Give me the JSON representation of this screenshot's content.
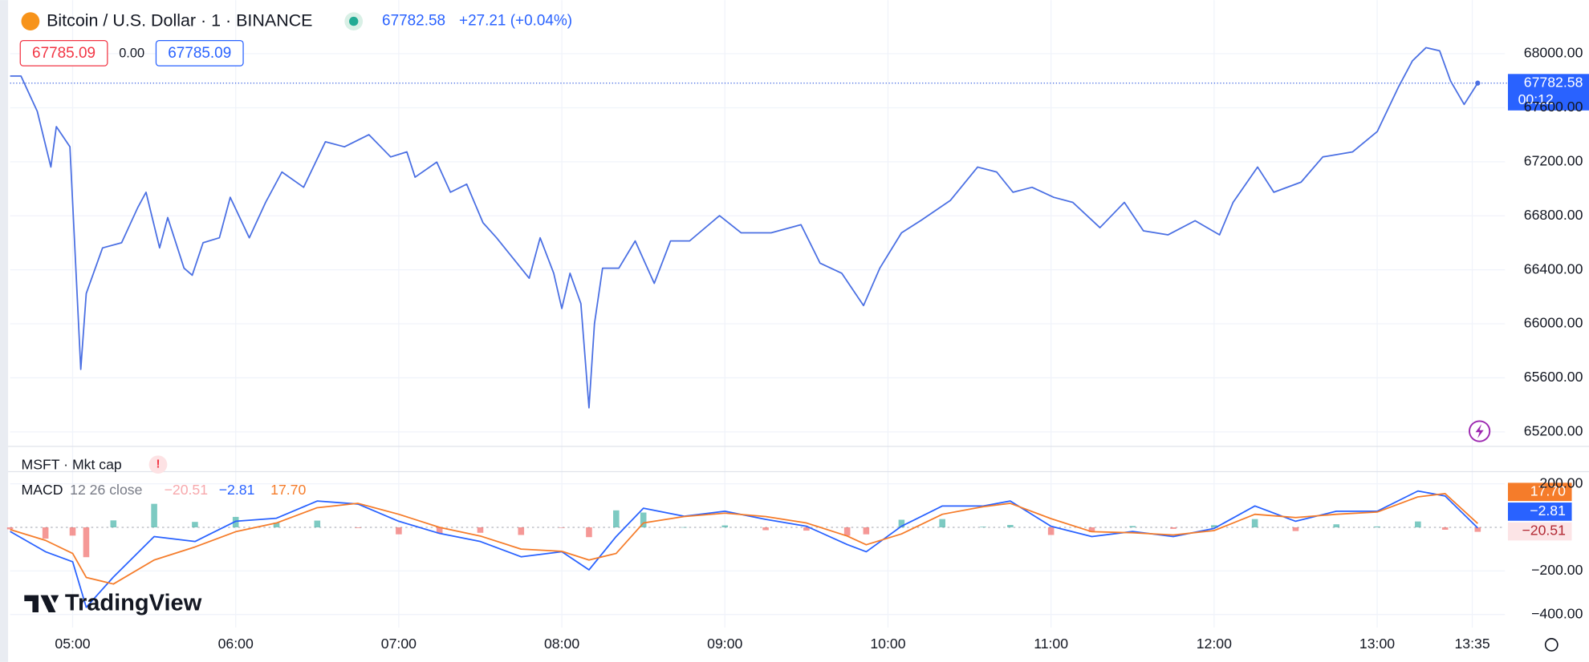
{
  "header": {
    "symbol": "Bitcoin / U.S. Dollar · 1 · BINANCE",
    "change": "+27.21 (+0.04%)",
    "bid": "67785.09",
    "spread": "0.00",
    "ask": "67785.09",
    "pane_title": "MSFT · Mkt cap",
    "logo": "TradingView"
  },
  "chart_data": [
    {
      "type": "line",
      "countdown": "00:12",
      "xlim": [
        "04:37",
        "13:47"
      ],
      "ylim": [
        65100,
        68360
      ],
      "xticks": [
        "05:00",
        "06:00",
        "07:00",
        "08:00",
        "09:00",
        "10:00",
        "11:00",
        "12:00",
        "13:00",
        "13:35"
      ],
      "yticks": [
        {
          "value": 65200,
          "label": "65200.00"
        },
        {
          "value": 65600,
          "label": "65600.00"
        },
        {
          "value": 66000,
          "label": "66000.00"
        },
        {
          "value": 66400,
          "label": "66400.00"
        },
        {
          "value": 66800,
          "label": "66800.00"
        },
        {
          "value": 67200,
          "label": "67200.00"
        },
        {
          "value": 67600,
          "label": "67600.00"
        },
        {
          "value": 68000,
          "label": "68000.00"
        }
      ],
      "grid": true,
      "series": [
        {
          "color": "#4a6fe3",
          "x": [
            "04:37",
            "04:41",
            "04:47",
            "04:52",
            "04:54",
            "04:59",
            "05:03",
            "05:05",
            "05:11",
            "05:18",
            "05:24",
            "05:27",
            "05:32",
            "05:35",
            "05:41",
            "05:44",
            "05:48",
            "05:54",
            "05:58",
            "06:05",
            "06:11",
            "06:17",
            "06:25",
            "06:33",
            "06:40",
            "06:49",
            "06:57",
            "07:03",
            "07:06",
            "07:14",
            "07:19",
            "07:25",
            "07:31",
            "07:36",
            "07:42",
            "07:48",
            "07:52",
            "07:57",
            "08:00",
            "08:03",
            "08:07",
            "08:10",
            "08:12",
            "08:15",
            "08:21",
            "08:27",
            "08:34",
            "08:40",
            "08:47",
            "08:58",
            "09:06",
            "09:17",
            "09:28",
            "09:35",
            "09:43",
            "09:51",
            "09:57",
            "10:05",
            "10:12",
            "10:23",
            "10:33",
            "10:40",
            "10:46",
            "10:53",
            "11:01",
            "11:08",
            "11:18",
            "11:27",
            "11:34",
            "11:43",
            "11:53",
            "12:02",
            "12:07",
            "12:16",
            "12:22",
            "12:32",
            "12:40",
            "12:51",
            "13:00",
            "13:08",
            "13:13",
            "13:18",
            "13:23",
            "13:27",
            "13:32",
            "13:37"
          ],
          "values": [
            67835,
            67835,
            67573,
            67161,
            67460,
            67311,
            65663,
            66225,
            66562,
            66600,
            66862,
            66974,
            66562,
            66787,
            66412,
            66360,
            66600,
            66637,
            66937,
            66637,
            66899,
            67124,
            67011,
            67348,
            67311,
            67401,
            67236,
            67273,
            67086,
            67198,
            66974,
            67034,
            66749,
            66637,
            66487,
            66337,
            66637,
            66375,
            66113,
            66375,
            66150,
            65378,
            66000,
            66412,
            66412,
            66614,
            66300,
            66614,
            66614,
            66801,
            66674,
            66674,
            66734,
            66450,
            66375,
            66135,
            66412,
            66674,
            66764,
            66914,
            67161,
            67124,
            66974,
            67011,
            66937,
            66899,
            66712,
            66899,
            66689,
            66659,
            66764,
            66659,
            66899,
            67161,
            66974,
            67049,
            67236,
            67273,
            67423,
            67760,
            67948,
            68045,
            68022,
            67798,
            67625,
            67782.58
          ]
        }
      ]
    },
    {
      "type": "macd",
      "xlim": [
        "04:37",
        "13:47"
      ],
      "ylim": [
        -460,
        251
      ],
      "yticks": [
        {
          "value": 200,
          "label": "200.00"
        },
        {
          "value": -200,
          "label": "−200.00"
        },
        {
          "value": -400,
          "label": "−400.00"
        }
      ],
      "legend": {
        "name": "MACD",
        "params": "12 26 close",
        "values": [
          -20.51,
          -2.81,
          17.7
        ],
        "value_labels": [
          "−20.51",
          "−2.81",
          "17.70"
        ]
      },
      "x": [
        "04:37",
        "04:50",
        "05:00",
        "05:05",
        "05:15",
        "05:30",
        "05:45",
        "06:00",
        "06:15",
        "06:30",
        "06:45",
        "07:00",
        "07:15",
        "07:30",
        "07:45",
        "08:00",
        "08:10",
        "08:20",
        "08:30",
        "08:45",
        "09:00",
        "09:15",
        "09:30",
        "09:45",
        "09:52",
        "10:05",
        "10:20",
        "10:35",
        "10:45",
        "11:00",
        "11:15",
        "11:30",
        "11:45",
        "12:00",
        "12:15",
        "12:30",
        "12:45",
        "13:00",
        "13:15",
        "13:25",
        "13:37"
      ],
      "series": [
        {
          "type": "histogram",
          "color": "#26a69a",
          "negative_color": "#ef5350",
          "values": [
            -9,
            -52,
            -38,
            -137,
            32,
            108,
            25,
            48,
            22,
            31,
            -3,
            -32,
            -28,
            -25,
            -35,
            -2,
            -45,
            78,
            68,
            1,
            9,
            -13,
            -15,
            -39,
            -32,
            35,
            38,
            3,
            11,
            -35,
            -22,
            6,
            -7,
            10,
            38,
            -17,
            14,
            4,
            27,
            -11,
            -20.51
          ]
        },
        {
          "type": "line",
          "color": "#2962ff",
          "values": [
            -19,
            -112,
            -158,
            -367,
            -228,
            -42,
            -65,
            28,
            42,
            121,
            107,
            28,
            -28,
            -65,
            -135,
            -112,
            -195,
            -42,
            88,
            51,
            74,
            37,
            5,
            -79,
            -112,
            5,
            98,
            98,
            121,
            5,
            -42,
            -19,
            -42,
            -5,
            98,
            28,
            74,
            74,
            167,
            144,
            -2.81
          ]
        },
        {
          "type": "line",
          "color": "#f57c2a",
          "values": [
            -10,
            -60,
            -120,
            -230,
            -260,
            -150,
            -90,
            -20,
            20,
            90,
            110,
            60,
            0,
            -40,
            -100,
            -110,
            -150,
            -120,
            20,
            50,
            65,
            50,
            20,
            -40,
            -80,
            -30,
            60,
            95,
            110,
            40,
            -20,
            -25,
            -35,
            -15,
            60,
            45,
            60,
            70,
            140,
            155,
            17.7
          ]
        }
      ]
    }
  ]
}
